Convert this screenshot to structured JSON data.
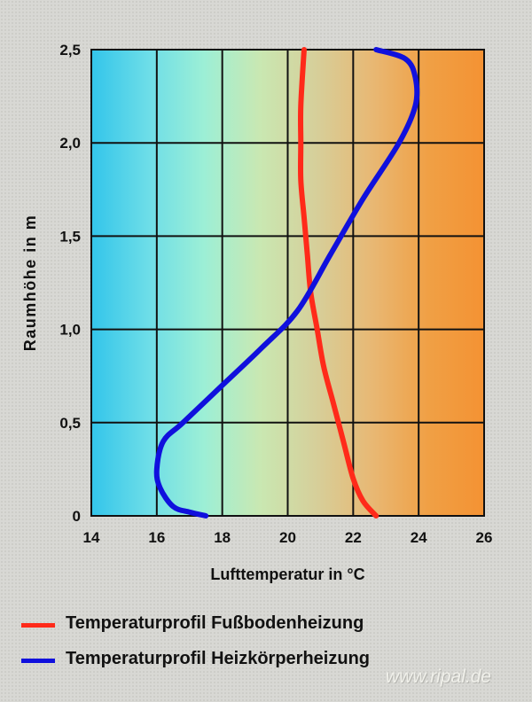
{
  "chart_data": {
    "type": "line",
    "xlabel": "Lufttemperatur in °C",
    "ylabel": "Raumhöhe in m",
    "xlim": [
      14,
      26
    ],
    "ylim": [
      0,
      2.5
    ],
    "x_ticks": [
      "14",
      "16",
      "18",
      "20",
      "22",
      "24",
      "26"
    ],
    "y_ticks": [
      "0",
      "0,5",
      "1,0",
      "1,5",
      "2,0",
      "2,5"
    ],
    "grid": true,
    "legend_position": "bottom",
    "series": [
      {
        "name": "Temperaturprofil Fußbodenheizung",
        "color": "#ff2a1a",
        "points": [
          [
            22.7,
            0.0
          ],
          [
            22.3,
            0.08
          ],
          [
            22.0,
            0.2
          ],
          [
            21.7,
            0.4
          ],
          [
            21.4,
            0.6
          ],
          [
            21.1,
            0.8
          ],
          [
            20.9,
            1.0
          ],
          [
            20.7,
            1.2
          ],
          [
            20.6,
            1.4
          ],
          [
            20.5,
            1.6
          ],
          [
            20.4,
            1.8
          ],
          [
            20.4,
            2.0
          ],
          [
            20.4,
            2.2
          ],
          [
            20.5,
            2.5
          ]
        ]
      },
      {
        "name": "Temperaturprofil Heizkörperheizung",
        "color": "#1010dd",
        "points": [
          [
            17.5,
            0.0
          ],
          [
            17.0,
            0.02
          ],
          [
            16.5,
            0.05
          ],
          [
            16.1,
            0.15
          ],
          [
            16.0,
            0.25
          ],
          [
            16.2,
            0.4
          ],
          [
            16.8,
            0.5
          ],
          [
            18.0,
            0.7
          ],
          [
            19.2,
            0.9
          ],
          [
            20.3,
            1.1
          ],
          [
            21.3,
            1.4
          ],
          [
            22.3,
            1.7
          ],
          [
            23.4,
            2.0
          ],
          [
            23.9,
            2.2
          ],
          [
            23.9,
            2.35
          ],
          [
            23.6,
            2.45
          ],
          [
            22.7,
            2.5
          ]
        ]
      }
    ],
    "background_bands": [
      "#33c5ea",
      "#6cdde8",
      "#9cefd6",
      "#c9e8b2",
      "#d6cf9a",
      "#e8b874",
      "#f0a045",
      "#f49233"
    ]
  },
  "watermark": "www.ripal.de"
}
